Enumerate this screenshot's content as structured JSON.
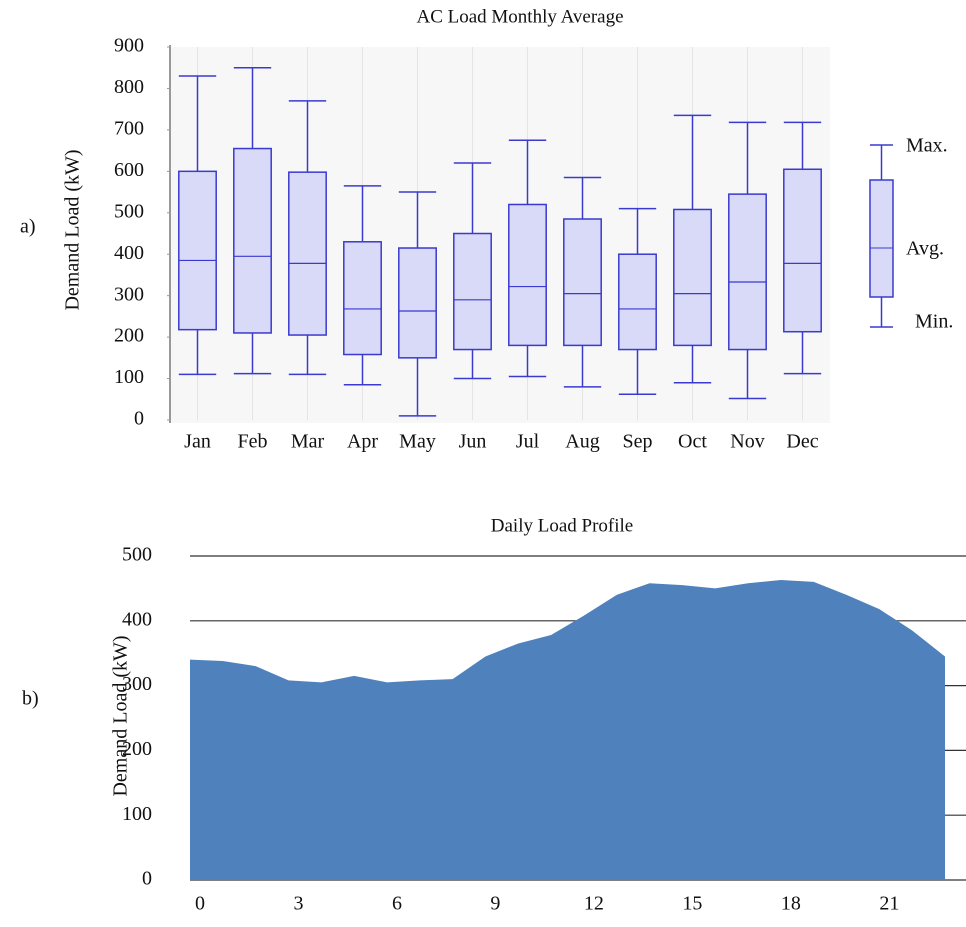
{
  "chart_data": [
    {
      "type": "box",
      "panel": "a)",
      "title": "AC Load Monthly Average",
      "y_label": "Demand  Load (kW)",
      "categories": [
        "Jan",
        "Feb",
        "Mar",
        "Apr",
        "May",
        "Jun",
        "Jul",
        "Aug",
        "Sep",
        "Oct",
        "Nov",
        "Dec"
      ],
      "max": [
        830,
        850,
        770,
        565,
        550,
        620,
        675,
        585,
        510,
        735,
        718,
        718
      ],
      "upper": [
        600,
        655,
        598,
        430,
        415,
        450,
        520,
        485,
        400,
        508,
        545,
        605
      ],
      "avg": [
        385,
        395,
        378,
        268,
        263,
        290,
        322,
        305,
        268,
        305,
        333,
        378
      ],
      "lower": [
        218,
        210,
        205,
        158,
        150,
        170,
        180,
        180,
        170,
        180,
        170,
        213
      ],
      "min": [
        110,
        112,
        110,
        85,
        10,
        100,
        105,
        80,
        62,
        90,
        52,
        112
      ],
      "ylim": [
        0,
        900
      ],
      "yticks": [
        0,
        100,
        200,
        300,
        400,
        500,
        600,
        700,
        800,
        900
      ],
      "legend_labels": {
        "max": "Max.",
        "avg": "Avg.",
        "min": "Min."
      },
      "color": "#3a3ad0",
      "fill": "#d9d9f8",
      "grid": true
    },
    {
      "type": "area",
      "panel": "b)",
      "title": "Daily Load Profile",
      "y_label": "Demand Load (kW)",
      "x": [
        0,
        1,
        2,
        3,
        4,
        5,
        6,
        7,
        8,
        9,
        10,
        11,
        12,
        13,
        14,
        15,
        16,
        17,
        18,
        19,
        20,
        21,
        22,
        23
      ],
      "values": [
        340,
        338,
        330,
        308,
        305,
        315,
        305,
        308,
        310,
        345,
        365,
        378,
        408,
        440,
        458,
        455,
        450,
        458,
        463,
        460,
        440,
        418,
        385,
        345
      ],
      "xlim": [
        0,
        23
      ],
      "xticks": [
        0,
        3,
        6,
        9,
        12,
        15,
        18,
        21
      ],
      "ylim": [
        0,
        500
      ],
      "yticks": [
        0,
        100,
        200,
        300,
        400,
        500
      ],
      "color": "#4f81bd",
      "grid": true
    }
  ]
}
